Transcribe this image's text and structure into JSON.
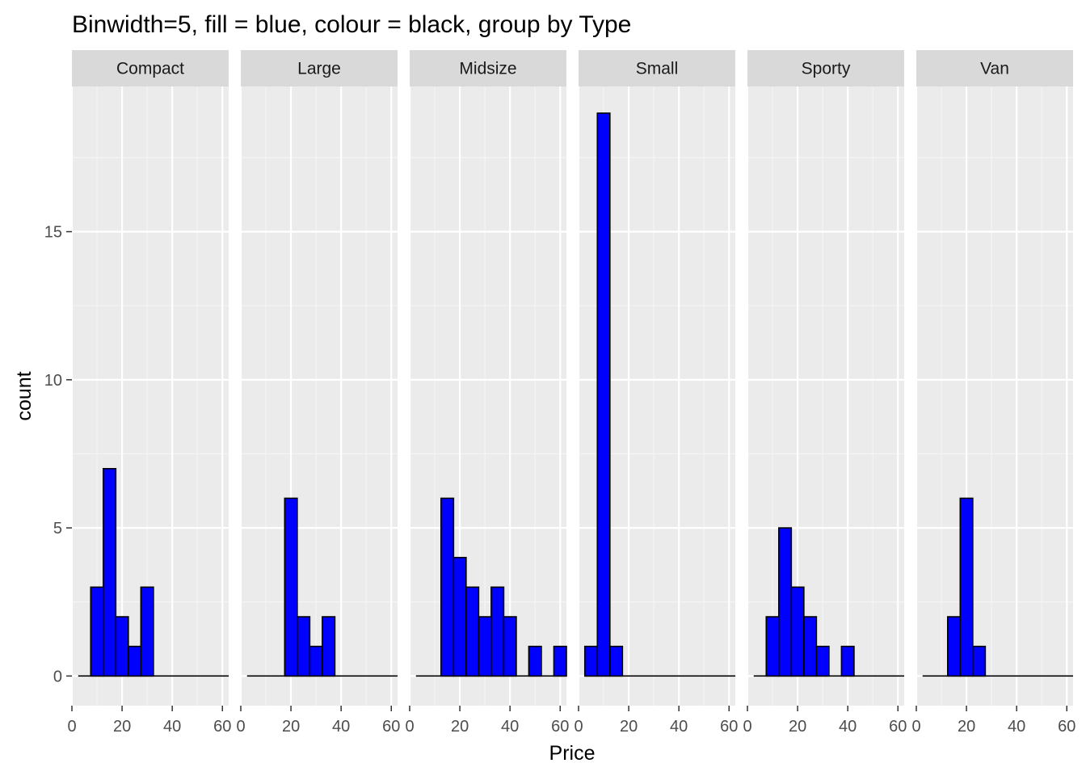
{
  "colors": {
    "panel_background": "#ebebeb",
    "strip_background": "#d9d9d9",
    "grid_major": "#ffffff",
    "grid_minor": "#f5f5f5",
    "bar_fill": "#0000ff",
    "bar_outline": "#000000",
    "axis_text": "#4d4d4d",
    "tick_mark": "#333333"
  },
  "chart_data": {
    "type": "bar",
    "title": "Binwidth=5, fill = blue, colour = black, group by Type",
    "xlabel": "Price",
    "ylabel": "count",
    "binwidth": 5,
    "bin_centers": [
      5,
      10,
      15,
      20,
      25,
      30,
      35,
      40,
      45,
      50,
      55,
      60
    ],
    "xlim": [
      0,
      62.5
    ],
    "ylim": [
      -1,
      19.9
    ],
    "x_ticks": [
      0,
      20,
      40,
      60
    ],
    "y_ticks": [
      0,
      5,
      10,
      15
    ],
    "grid": true,
    "facet_by": "Type",
    "series": [
      {
        "name": "Compact",
        "values": [
          0,
          3,
          7,
          2,
          1,
          3,
          0,
          0,
          0,
          0,
          0,
          0
        ]
      },
      {
        "name": "Large",
        "values": [
          0,
          0,
          0,
          6,
          2,
          1,
          2,
          0,
          0,
          0,
          0,
          0
        ]
      },
      {
        "name": "Midsize",
        "values": [
          0,
          0,
          6,
          4,
          3,
          2,
          3,
          2,
          0,
          1,
          0,
          1
        ]
      },
      {
        "name": "Small",
        "values": [
          1,
          19,
          1,
          0,
          0,
          0,
          0,
          0,
          0,
          0,
          0,
          0
        ]
      },
      {
        "name": "Sporty",
        "values": [
          0,
          2,
          5,
          3,
          2,
          1,
          0,
          1,
          0,
          0,
          0,
          0
        ]
      },
      {
        "name": "Van",
        "values": [
          0,
          0,
          2,
          6,
          1,
          0,
          0,
          0,
          0,
          0,
          0,
          0
        ]
      }
    ]
  }
}
